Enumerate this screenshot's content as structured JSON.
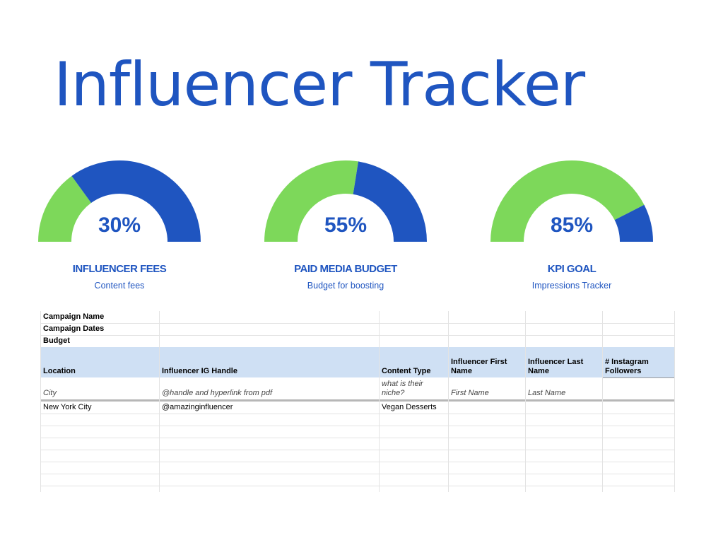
{
  "title": "Influencer Tracker",
  "colors": {
    "primary": "#1f55c0",
    "secondary": "#7dd85a",
    "header_bg": "#cfe0f4"
  },
  "gauges": [
    {
      "percent_text": "30%",
      "value": 0.3,
      "label": "INFLUENCER FEES",
      "sub": "Content fees"
    },
    {
      "percent_text": "55%",
      "value": 0.55,
      "label": "PAID MEDIA BUDGET",
      "sub": "Budget for boosting"
    },
    {
      "percent_text": "85%",
      "value": 0.85,
      "label": "KPI GOAL",
      "sub": "Impressions Tracker"
    }
  ],
  "sheet": {
    "info_rows": [
      "Campaign Name",
      "Campaign Dates",
      "Budget"
    ],
    "headers": [
      "Location",
      "Influencer IG Handle",
      "Content Type",
      "Influencer First Name",
      "Influencer Last Name",
      "# Instagram Followers"
    ],
    "example_row": [
      "City",
      "@handle and hyperlink from pdf",
      "what is their niche?",
      "First Name",
      "Last Name",
      ""
    ],
    "rows": [
      [
        "New York City",
        "@amazinginfluencer",
        "Vegan Desserts",
        "",
        "",
        ""
      ]
    ]
  }
}
